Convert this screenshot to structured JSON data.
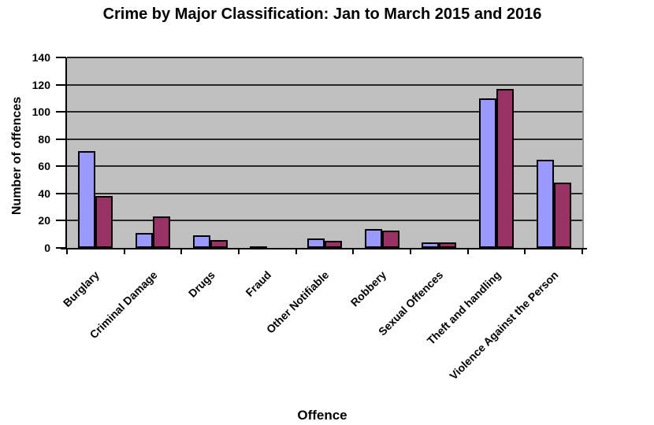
{
  "chart_data": {
    "type": "bar",
    "title": "Crime by Major Classification: Jan to March 2015 and 2016",
    "xlabel": "Offence",
    "ylabel": "Number of offences",
    "ylim": [
      0,
      140
    ],
    "yticks": [
      0,
      20,
      40,
      60,
      80,
      100,
      120,
      140
    ],
    "grid": true,
    "legend": "none",
    "plot_bg_color": "#c0c0c0",
    "gridline_color": "#262626",
    "axis_color": "#000000",
    "bar_outline_color": "#000000",
    "categories": [
      "Burglary",
      "Criminal Damage",
      "Drugs",
      "Fraud",
      "Other Notifiable",
      "Robbery",
      "Sexual Offences",
      "Theft and handling",
      "Violence Against the Person"
    ],
    "series": [
      {
        "name": "2015",
        "color": "#9999ff",
        "values": [
          71,
          11,
          9,
          1,
          7,
          14,
          4,
          110,
          65
        ]
      },
      {
        "name": "2016",
        "color": "#993366",
        "values": [
          38,
          23,
          6,
          0,
          5,
          13,
          4,
          117,
          48
        ]
      }
    ]
  }
}
